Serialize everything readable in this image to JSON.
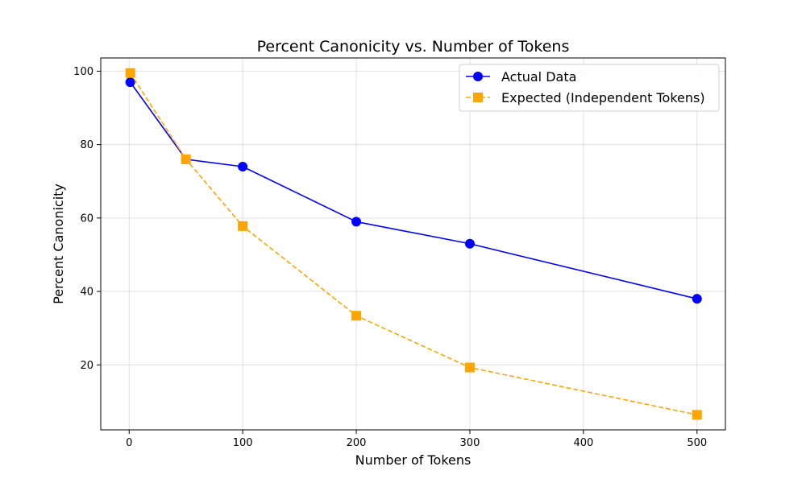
{
  "chart_data": {
    "type": "line",
    "title": "Percent Canonicity vs. Number of Tokens",
    "xlabel": "Number of Tokens",
    "ylabel": "Percent Canonicity",
    "xlim": [
      -25,
      525
    ],
    "ylim": [
      2.3,
      103.6
    ],
    "xticks": [
      0,
      100,
      200,
      300,
      400,
      500
    ],
    "yticks": [
      20,
      40,
      60,
      80,
      100
    ],
    "grid": true,
    "legend_position": "top-right",
    "series": [
      {
        "name": "Actual Data",
        "color": "#0000ff",
        "linestyle": "solid",
        "marker": "circle",
        "x": [
          1,
          50,
          100,
          200,
          300,
          500
        ],
        "y": [
          97,
          76,
          74,
          59,
          53,
          38
        ]
      },
      {
        "name": "Expected (Independent Tokens)",
        "color": "#ffa500",
        "linestyle": "dashed",
        "marker": "square",
        "x": [
          1,
          50,
          100,
          200,
          300,
          500
        ],
        "y": [
          99.5,
          76,
          57.8,
          33.4,
          19.3,
          6.4
        ]
      }
    ]
  }
}
